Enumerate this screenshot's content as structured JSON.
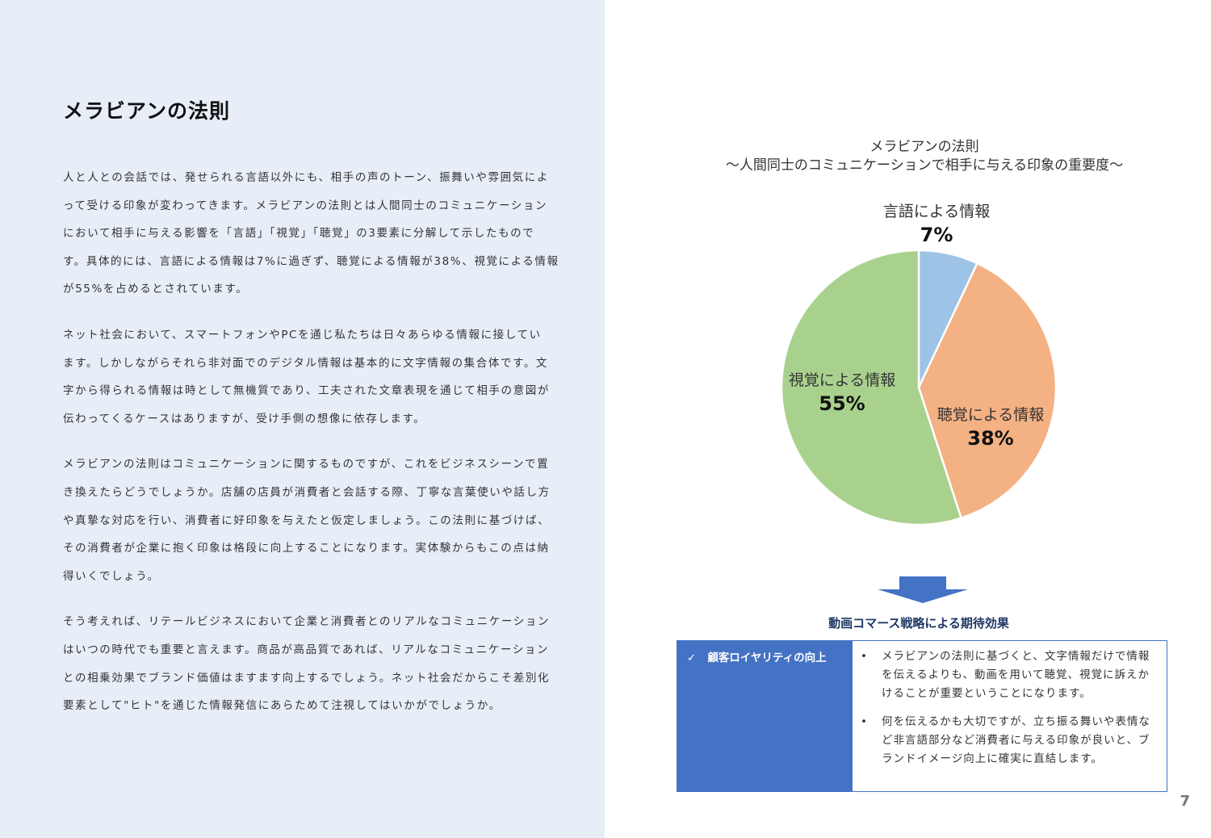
{
  "left": {
    "title": "メラビアンの法則",
    "paragraphs": [
      [
        "人と人との会話では、発せられる言語以外にも、相手の声のトーン、振舞いや雰囲気によ",
        "って受ける印象が変わってきます。メラビアンの法則とは人間同士のコミュニケーション",
        "において相手に与える影響を「言語」「視覚」「聴覚」の3要素に分解して示したもので",
        "す。具体的には、言語による情報は7%に過ぎず、聴覚による情報が38%、視覚による情報",
        "が55%を占めるとされています。"
      ],
      [
        "ネット社会において、スマートフォンやPCを通じ私たちは日々あらゆる情報に接してい",
        "ます。しかしながらそれら非対面でのデジタル情報は基本的に文字情報の集合体です。文",
        "字から得られる情報は時として無機質であり、工夫された文章表現を通じて相手の意図が",
        "伝わってくるケースはありますが、受け手側の想像に依存します。"
      ],
      [
        "メラビアンの法則はコミュニケーションに関するものですが、これをビジネスシーンで置",
        "き換えたらどうでしょうか。店舗の店員が消費者と会話する際、丁寧な言葉使いや話し方",
        "や真摯な対応を行い、消費者に好印象を与えたと仮定しましょう。この法則に基づけば、",
        "その消費者が企業に抱く印象は格段に向上することになります。実体験からもこの点は納",
        "得いくでしょう。"
      ],
      [
        "そう考えれば、リテールビジネスにおいて企業と消費者とのリアルなコミュニケーション",
        "はいつの時代でも重要と言えます。商品が高品質であれば、リアルなコミュニケーション",
        "との相乗効果でブランド価値はますます向上するでしょう。ネット社会だからこそ差別化",
        "要素として\"ヒト\"を通じた情報発信にあらためて注視してはいかがでしょうか。"
      ]
    ]
  },
  "chart_data": {
    "type": "pie",
    "title": "メラビアンの法則",
    "subtitle": "〜人間同士のコミュニケーションで相手に与える印象の重要度〜",
    "slices": [
      {
        "label": "言語による情報",
        "value": 7,
        "display": "7%",
        "color": "#9dc3e6"
      },
      {
        "label": "聴覚による情報",
        "value": 38,
        "display": "38%",
        "color": "#f4b183"
      },
      {
        "label": "視覚による情報",
        "value": 55,
        "display": "55%",
        "color": "#a9d18e"
      }
    ],
    "start": "top",
    "direction": "clockwise"
  },
  "effects": {
    "title": "動画コマース戦略による期待効果",
    "check_icon": "check-icon",
    "heading": "顧客ロイヤリティの向上",
    "bullets": [
      "メラビアンの法則に基づくと、文字情報だけで情報を伝えるよりも、動画を用いて聴覚、視覚に訴えかけることが重要ということになります。",
      "何を伝えるかも大切ですが、立ち振る舞いや表情など非言語部分など消費者に与える印象が良いと、ブランドイメージ向上に確実に直結します。"
    ],
    "accent": "#4472c4"
  },
  "page_number": "7"
}
